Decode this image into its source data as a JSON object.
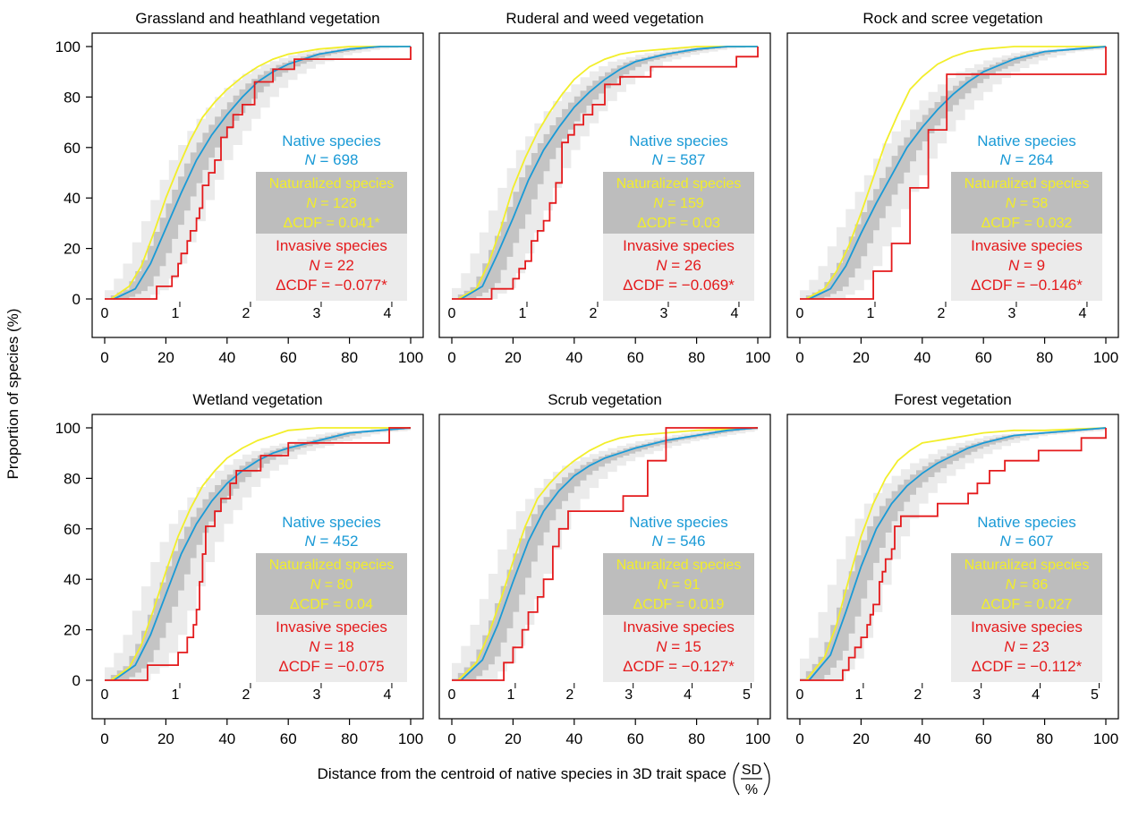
{
  "figure": {
    "ylabel": "Proportion of species (%)",
    "xlabel": "Distance from the centroid of native species in 3D trait space",
    "xlabel_fraction_top": "SD",
    "xlabel_fraction_bottom": "%"
  },
  "colors": {
    "native": "#1a9ad6",
    "naturalized": "#f2ee2a",
    "invasive": "#e41a1c",
    "band_light": "#ebebeb",
    "band_dark": "#c4c4c4",
    "naturalized_box": "#bdbdbd",
    "invasive_box": "#ebebeb"
  },
  "chart_data": [
    {
      "type": "line",
      "title": "Grassland and heathland vegetation",
      "xlim": [
        0,
        100
      ],
      "ylim": [
        0,
        100
      ],
      "x_ticks": [
        0,
        20,
        40,
        60,
        80,
        100
      ],
      "y_ticks": [
        0,
        20,
        40,
        60,
        80,
        100
      ],
      "sd_ticks": [
        0,
        1,
        2,
        3,
        4
      ],
      "sd_per_percent": 0.0433,
      "legend": {
        "native_label": "Native species",
        "native_n": "698",
        "naturalized_label": "Naturalized species",
        "naturalized_n": "128",
        "naturalized_dcdf": "0.041*",
        "invasive_label": "Invasive species",
        "invasive_n": "22",
        "invasive_dcdf": "−0.077*"
      },
      "series": [
        {
          "name": "Native species",
          "x": [
            3,
            10,
            15,
            20,
            25,
            30,
            35,
            40,
            45,
            50,
            55,
            60,
            70,
            80,
            90,
            100
          ],
          "y": [
            0,
            4,
            14,
            28,
            42,
            55,
            65,
            73,
            80,
            86,
            90,
            93,
            97,
            99,
            100,
            100
          ]
        },
        {
          "name": "Naturalized species",
          "x": [
            2,
            8,
            12,
            16,
            20,
            24,
            28,
            32,
            36,
            40,
            45,
            50,
            55,
            60,
            70,
            80,
            100
          ],
          "y": [
            0,
            5,
            13,
            26,
            40,
            52,
            63,
            72,
            78,
            83,
            88,
            92,
            95,
            97,
            99,
            100,
            100
          ]
        },
        {
          "name": "Invasive species",
          "x": [
            0,
            16,
            17,
            21,
            22,
            24,
            25,
            27,
            28,
            30,
            31,
            32,
            34,
            36,
            38,
            40,
            42,
            45,
            49,
            55,
            62,
            96,
            100
          ],
          "y": [
            0,
            0,
            5,
            5,
            9,
            14,
            18,
            23,
            27,
            32,
            36,
            45,
            50,
            55,
            64,
            68,
            73,
            77,
            86,
            91,
            95,
            95,
            100
          ]
        }
      ]
    },
    {
      "type": "line",
      "title": "Ruderal and weed vegetation",
      "xlim": [
        0,
        100
      ],
      "ylim": [
        0,
        100
      ],
      "x_ticks": [
        0,
        20,
        40,
        60,
        80,
        100
      ],
      "y_ticks": [
        0,
        20,
        40,
        60,
        80,
        100
      ],
      "sd_ticks": [
        0,
        1,
        2,
        3,
        4
      ],
      "sd_per_percent": 0.0433,
      "legend": {
        "native_label": "Native species",
        "native_n": "587",
        "naturalized_label": "Naturalized species",
        "naturalized_n": "159",
        "naturalized_dcdf": "0.03",
        "invasive_label": "Invasive species",
        "invasive_n": "26",
        "invasive_dcdf": "−0.069*"
      },
      "series": [
        {
          "name": "Native species",
          "x": [
            3,
            10,
            15,
            20,
            25,
            30,
            35,
            40,
            45,
            50,
            55,
            60,
            70,
            80,
            90,
            100
          ],
          "y": [
            0,
            5,
            18,
            32,
            47,
            59,
            68,
            76,
            82,
            87,
            91,
            94,
            97,
            99,
            100,
            100
          ]
        },
        {
          "name": "Naturalized species",
          "x": [
            2,
            8,
            12,
            16,
            20,
            24,
            28,
            32,
            36,
            40,
            45,
            50,
            55,
            60,
            70,
            80,
            100
          ],
          "y": [
            0,
            4,
            14,
            28,
            44,
            56,
            66,
            74,
            81,
            87,
            92,
            95,
            97,
            98,
            99,
            100,
            100
          ]
        },
        {
          "name": "Invasive species",
          "x": [
            0,
            12,
            13,
            18,
            20,
            22,
            24,
            26,
            28,
            30,
            32,
            34,
            36,
            38,
            40,
            43,
            46,
            50,
            55,
            65,
            93,
            100
          ],
          "y": [
            0,
            0,
            4,
            4,
            8,
            12,
            15,
            23,
            27,
            31,
            38,
            46,
            62,
            65,
            69,
            73,
            77,
            85,
            88,
            92,
            96,
            100
          ]
        }
      ]
    },
    {
      "type": "line",
      "title": "Rock and scree vegetation",
      "xlim": [
        0,
        100
      ],
      "ylim": [
        0,
        100
      ],
      "x_ticks": [
        0,
        20,
        40,
        60,
        80,
        100
      ],
      "y_ticks": [
        0,
        20,
        40,
        60,
        80,
        100
      ],
      "sd_ticks": [
        0,
        1,
        2,
        3,
        4
      ],
      "sd_per_percent": 0.0433,
      "legend": {
        "native_label": "Native species",
        "native_n": "264",
        "naturalized_label": "Naturalized species",
        "naturalized_n": "58",
        "naturalized_dcdf": "0.032",
        "invasive_label": "Invasive species",
        "invasive_n": "9",
        "invasive_dcdf": "−0.146*"
      },
      "series": [
        {
          "name": "Native species",
          "x": [
            3,
            10,
            15,
            20,
            25,
            30,
            35,
            40,
            45,
            50,
            55,
            60,
            70,
            80,
            90,
            100
          ],
          "y": [
            0,
            4,
            13,
            26,
            38,
            49,
            60,
            68,
            75,
            81,
            86,
            90,
            95,
            98,
            99,
            100
          ]
        },
        {
          "name": "Naturalized species",
          "x": [
            2,
            8,
            12,
            16,
            20,
            24,
            28,
            32,
            36,
            40,
            45,
            50,
            55,
            60,
            70,
            80,
            100
          ],
          "y": [
            0,
            4,
            11,
            21,
            34,
            48,
            62,
            73,
            83,
            88,
            93,
            96,
            98,
            99,
            100,
            100,
            100
          ]
        },
        {
          "name": "Invasive species",
          "x": [
            0,
            23,
            24,
            29,
            30,
            35,
            36,
            40,
            42,
            47,
            48,
            100,
            100
          ],
          "y": [
            0,
            0,
            11,
            11,
            22,
            22,
            44,
            44,
            67,
            67,
            89,
            89,
            100
          ]
        }
      ]
    },
    {
      "type": "line",
      "title": "Wetland vegetation",
      "xlim": [
        0,
        100
      ],
      "ylim": [
        0,
        100
      ],
      "x_ticks": [
        0,
        20,
        40,
        60,
        80,
        100
      ],
      "y_ticks": [
        0,
        20,
        40,
        60,
        80,
        100
      ],
      "sd_ticks": [
        0,
        1,
        2,
        3,
        4
      ],
      "sd_per_percent": 0.0433,
      "legend": {
        "native_label": "Native species",
        "native_n": "452",
        "naturalized_label": "Naturalized species",
        "naturalized_n": "80",
        "naturalized_dcdf": "0.04",
        "invasive_label": "Invasive species",
        "invasive_n": "18",
        "invasive_dcdf": "−0.075"
      },
      "series": [
        {
          "name": "Native species",
          "x": [
            3,
            10,
            15,
            20,
            25,
            30,
            35,
            40,
            45,
            50,
            55,
            60,
            70,
            80,
            90,
            100
          ],
          "y": [
            0,
            6,
            18,
            34,
            50,
            62,
            71,
            78,
            83,
            87,
            90,
            92,
            95,
            98,
            99,
            100
          ]
        },
        {
          "name": "Naturalized species",
          "x": [
            2,
            8,
            12,
            16,
            20,
            24,
            28,
            32,
            36,
            40,
            45,
            50,
            55,
            60,
            70,
            80,
            100
          ],
          "y": [
            0,
            5,
            14,
            28,
            43,
            57,
            68,
            77,
            83,
            88,
            92,
            95,
            97,
            99,
            100,
            100,
            100
          ]
        },
        {
          "name": "Invasive species",
          "x": [
            0,
            13,
            14,
            23,
            24,
            26,
            27,
            29,
            30,
            31,
            32,
            33,
            36,
            38,
            41,
            43,
            51,
            55,
            60,
            66,
            93,
            100
          ],
          "y": [
            0,
            0,
            6,
            6,
            11,
            11,
            17,
            22,
            28,
            39,
            50,
            61,
            67,
            72,
            78,
            83,
            89,
            89,
            94,
            94,
            100,
            100
          ]
        }
      ]
    },
    {
      "type": "line",
      "title": "Scrub vegetation",
      "xlim": [
        0,
        100
      ],
      "ylim": [
        0,
        100
      ],
      "x_ticks": [
        0,
        20,
        40,
        60,
        80,
        100
      ],
      "y_ticks": [
        0,
        20,
        40,
        60,
        80,
        100
      ],
      "sd_ticks": [
        0,
        1,
        2,
        3,
        4,
        5
      ],
      "sd_per_percent": 0.0519,
      "legend": {
        "native_label": "Native species",
        "native_n": "546",
        "naturalized_label": "Naturalized species",
        "naturalized_n": "91",
        "naturalized_dcdf": "0.019",
        "invasive_label": "Invasive species",
        "invasive_n": "15",
        "invasive_dcdf": "−0.127*"
      },
      "series": [
        {
          "name": "Native species",
          "x": [
            3,
            10,
            15,
            20,
            25,
            30,
            35,
            40,
            45,
            50,
            55,
            60,
            70,
            80,
            90,
            100
          ],
          "y": [
            0,
            8,
            22,
            39,
            55,
            67,
            75,
            81,
            85,
            88,
            90,
            92,
            95,
            97,
            99,
            100
          ]
        },
        {
          "name": "Naturalized species",
          "x": [
            2,
            8,
            12,
            16,
            20,
            24,
            28,
            32,
            36,
            40,
            45,
            50,
            55,
            60,
            70,
            80,
            100
          ],
          "y": [
            0,
            7,
            18,
            32,
            47,
            61,
            72,
            78,
            83,
            87,
            91,
            94,
            96,
            97,
            98,
            99,
            100
          ]
        },
        {
          "name": "Invasive species",
          "x": [
            0,
            16,
            17,
            19,
            20,
            23,
            25,
            28,
            30,
            33,
            35,
            36,
            38,
            55,
            56,
            62,
            64,
            68,
            70,
            78,
            100
          ],
          "y": [
            0,
            0,
            7,
            7,
            13,
            20,
            27,
            33,
            40,
            53,
            60,
            60,
            67,
            67,
            73,
            73,
            87,
            87,
            100,
            100,
            100
          ]
        }
      ]
    },
    {
      "type": "line",
      "title": "Forest vegetation",
      "xlim": [
        0,
        100
      ],
      "ylim": [
        0,
        100
      ],
      "x_ticks": [
        0,
        20,
        40,
        60,
        80,
        100
      ],
      "y_ticks": [
        0,
        20,
        40,
        60,
        80,
        100
      ],
      "sd_ticks": [
        0,
        1,
        2,
        3,
        4,
        5
      ],
      "sd_per_percent": 0.0519,
      "legend": {
        "native_label": "Native species",
        "native_n": "607",
        "naturalized_label": "Naturalized species",
        "naturalized_n": "86",
        "naturalized_dcdf": "0.027",
        "invasive_label": "Invasive species",
        "invasive_n": "23",
        "invasive_dcdf": "−0.112*"
      },
      "series": [
        {
          "name": "Native species",
          "x": [
            3,
            10,
            15,
            20,
            25,
            30,
            35,
            40,
            45,
            50,
            55,
            60,
            70,
            80,
            90,
            100
          ],
          "y": [
            0,
            10,
            27,
            45,
            60,
            70,
            77,
            82,
            86,
            89,
            92,
            94,
            97,
            98,
            99,
            100
          ]
        },
        {
          "name": "Naturalized species",
          "x": [
            2,
            8,
            12,
            16,
            20,
            24,
            28,
            32,
            36,
            40,
            45,
            50,
            55,
            60,
            70,
            80,
            100
          ],
          "y": [
            0,
            9,
            22,
            40,
            57,
            70,
            80,
            87,
            91,
            94,
            95,
            96,
            97,
            98,
            99,
            99,
            100
          ]
        },
        {
          "name": "Invasive species",
          "x": [
            0,
            13,
            14,
            16,
            18,
            20,
            22,
            23,
            24,
            26,
            27,
            28,
            30,
            31,
            33,
            40,
            45,
            55,
            58,
            62,
            67,
            78,
            92,
            100
          ],
          "y": [
            0,
            0,
            4,
            9,
            13,
            17,
            22,
            26,
            30,
            39,
            43,
            48,
            52,
            61,
            65,
            65,
            70,
            74,
            78,
            83,
            87,
            91,
            96,
            100
          ]
        }
      ]
    }
  ]
}
